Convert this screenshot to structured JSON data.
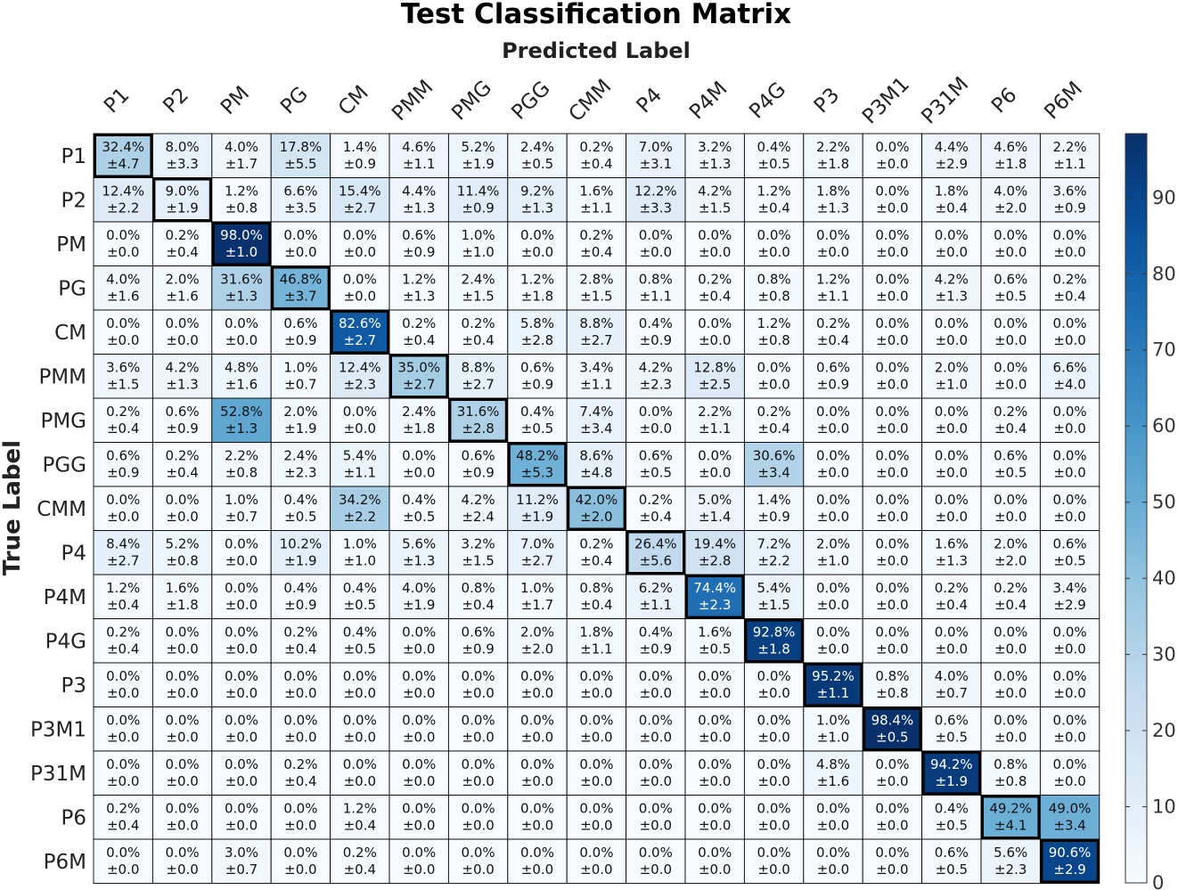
{
  "chart_data": {
    "type": "heatmap",
    "title": "Test Classification Matrix",
    "xlabel": "Predicted Label",
    "ylabel": "True Label",
    "categories": [
      "P1",
      "P2",
      "PM",
      "PG",
      "CM",
      "PMM",
      "PMG",
      "PGG",
      "CMM",
      "P4",
      "P4M",
      "P4G",
      "P3",
      "P3M1",
      "P31M",
      "P6",
      "P6M"
    ],
    "values": [
      [
        32.4,
        8.0,
        4.0,
        17.8,
        1.4,
        4.6,
        5.2,
        2.4,
        0.2,
        7.0,
        3.2,
        0.4,
        2.2,
        0.0,
        4.4,
        4.6,
        2.2
      ],
      [
        12.4,
        9.0,
        1.2,
        6.6,
        15.4,
        4.4,
        11.4,
        9.2,
        1.6,
        12.2,
        4.2,
        1.2,
        1.8,
        0.0,
        1.8,
        4.0,
        3.6
      ],
      [
        0.0,
        0.2,
        98.0,
        0.0,
        0.0,
        0.6,
        1.0,
        0.0,
        0.2,
        0.0,
        0.0,
        0.0,
        0.0,
        0.0,
        0.0,
        0.0,
        0.0
      ],
      [
        4.0,
        2.0,
        31.6,
        46.8,
        0.0,
        1.2,
        2.4,
        1.2,
        2.8,
        0.8,
        0.2,
        0.8,
        1.2,
        0.0,
        4.2,
        0.6,
        0.2
      ],
      [
        0.0,
        0.0,
        0.0,
        0.6,
        82.6,
        0.2,
        0.2,
        5.8,
        8.8,
        0.4,
        0.0,
        1.2,
        0.2,
        0.0,
        0.0,
        0.0,
        0.0
      ],
      [
        3.6,
        4.2,
        4.8,
        1.0,
        12.4,
        35.0,
        8.8,
        0.6,
        3.4,
        4.2,
        12.8,
        0.0,
        0.6,
        0.0,
        2.0,
        0.0,
        6.6
      ],
      [
        0.2,
        0.6,
        52.8,
        2.0,
        0.0,
        2.4,
        31.6,
        0.4,
        7.4,
        0.0,
        2.2,
        0.2,
        0.0,
        0.0,
        0.0,
        0.2,
        0.0
      ],
      [
        0.6,
        0.2,
        2.2,
        2.4,
        5.4,
        0.0,
        0.6,
        48.2,
        8.6,
        0.6,
        0.0,
        30.6,
        0.0,
        0.0,
        0.0,
        0.6,
        0.0
      ],
      [
        0.0,
        0.0,
        1.0,
        0.4,
        34.2,
        0.4,
        4.2,
        11.2,
        42.0,
        0.2,
        5.0,
        1.4,
        0.0,
        0.0,
        0.0,
        0.0,
        0.0
      ],
      [
        8.4,
        5.2,
        0.0,
        10.2,
        1.0,
        5.6,
        3.2,
        7.0,
        0.2,
        26.4,
        19.4,
        7.2,
        2.0,
        0.0,
        1.6,
        2.0,
        0.6
      ],
      [
        1.2,
        1.6,
        0.0,
        0.4,
        0.4,
        4.0,
        0.8,
        1.0,
        0.8,
        6.2,
        74.4,
        5.4,
        0.0,
        0.0,
        0.2,
        0.2,
        3.4
      ],
      [
        0.2,
        0.0,
        0.0,
        0.2,
        0.4,
        0.0,
        0.6,
        2.0,
        1.8,
        0.4,
        1.6,
        92.8,
        0.0,
        0.0,
        0.0,
        0.0,
        0.0
      ],
      [
        0.0,
        0.0,
        0.0,
        0.0,
        0.0,
        0.0,
        0.0,
        0.0,
        0.0,
        0.0,
        0.0,
        0.0,
        95.2,
        0.8,
        4.0,
        0.0,
        0.0
      ],
      [
        0.0,
        0.0,
        0.0,
        0.0,
        0.0,
        0.0,
        0.0,
        0.0,
        0.0,
        0.0,
        0.0,
        0.0,
        1.0,
        98.4,
        0.6,
        0.0,
        0.0
      ],
      [
        0.0,
        0.0,
        0.0,
        0.2,
        0.0,
        0.0,
        0.0,
        0.0,
        0.0,
        0.0,
        0.0,
        0.0,
        4.8,
        0.0,
        94.2,
        0.8,
        0.0
      ],
      [
        0.2,
        0.0,
        0.0,
        0.0,
        1.2,
        0.0,
        0.0,
        0.0,
        0.0,
        0.0,
        0.0,
        0.0,
        0.0,
        0.0,
        0.4,
        49.2,
        49.0
      ],
      [
        0.0,
        0.0,
        3.0,
        0.0,
        0.2,
        0.0,
        0.0,
        0.0,
        0.0,
        0.0,
        0.0,
        0.0,
        0.0,
        0.0,
        0.6,
        5.6,
        90.6
      ]
    ],
    "errors": [
      [
        4.7,
        3.3,
        1.7,
        5.5,
        0.9,
        1.1,
        1.9,
        0.5,
        0.4,
        3.1,
        1.3,
        0.5,
        1.8,
        0.0,
        2.9,
        1.8,
        1.1
      ],
      [
        2.2,
        1.9,
        0.8,
        3.5,
        2.7,
        1.3,
        0.9,
        1.3,
        1.1,
        3.3,
        1.5,
        0.4,
        1.3,
        0.0,
        0.4,
        2.0,
        0.9
      ],
      [
        0.0,
        0.4,
        1.0,
        0.0,
        0.0,
        0.9,
        1.0,
        0.0,
        0.4,
        0.0,
        0.0,
        0.0,
        0.0,
        0.0,
        0.0,
        0.0,
        0.0
      ],
      [
        1.6,
        1.6,
        1.3,
        3.7,
        0.0,
        1.3,
        1.5,
        1.8,
        1.5,
        1.1,
        0.4,
        0.8,
        1.1,
        0.0,
        1.3,
        0.5,
        0.4
      ],
      [
        0.0,
        0.0,
        0.0,
        0.9,
        2.7,
        0.4,
        0.4,
        2.8,
        2.7,
        0.9,
        0.0,
        0.8,
        0.4,
        0.0,
        0.0,
        0.0,
        0.0
      ],
      [
        1.5,
        1.3,
        1.6,
        0.7,
        2.3,
        2.7,
        2.7,
        0.9,
        1.1,
        2.3,
        2.5,
        0.0,
        0.9,
        0.0,
        1.0,
        0.0,
        4.0
      ],
      [
        0.4,
        0.9,
        1.3,
        1.9,
        0.0,
        1.8,
        2.8,
        0.5,
        3.4,
        0.0,
        1.1,
        0.4,
        0.0,
        0.0,
        0.0,
        0.4,
        0.0
      ],
      [
        0.9,
        0.4,
        0.8,
        2.3,
        1.1,
        0.0,
        0.9,
        5.3,
        4.8,
        0.5,
        0.0,
        3.4,
        0.0,
        0.0,
        0.0,
        0.5,
        0.0
      ],
      [
        0.0,
        0.0,
        0.7,
        0.5,
        2.2,
        0.5,
        2.4,
        1.9,
        2.0,
        0.4,
        1.4,
        0.9,
        0.0,
        0.0,
        0.0,
        0.0,
        0.0
      ],
      [
        2.7,
        0.8,
        0.0,
        1.9,
        1.0,
        1.3,
        1.5,
        2.7,
        0.4,
        5.6,
        2.8,
        2.2,
        1.0,
        0.0,
        1.3,
        2.0,
        0.5
      ],
      [
        0.4,
        1.8,
        0.0,
        0.9,
        0.5,
        1.9,
        0.4,
        1.7,
        0.4,
        1.1,
        2.3,
        1.5,
        0.0,
        0.0,
        0.4,
        0.4,
        2.9
      ],
      [
        0.4,
        0.0,
        0.0,
        0.4,
        0.5,
        0.0,
        0.9,
        2.0,
        1.1,
        0.9,
        0.5,
        1.8,
        0.0,
        0.0,
        0.0,
        0.0,
        0.0
      ],
      [
        0.0,
        0.0,
        0.0,
        0.0,
        0.0,
        0.0,
        0.0,
        0.0,
        0.0,
        0.0,
        0.0,
        0.0,
        1.1,
        0.8,
        0.7,
        0.0,
        0.0
      ],
      [
        0.0,
        0.0,
        0.0,
        0.0,
        0.0,
        0.0,
        0.0,
        0.0,
        0.0,
        0.0,
        0.0,
        0.0,
        1.0,
        0.5,
        0.5,
        0.0,
        0.0
      ],
      [
        0.0,
        0.0,
        0.0,
        0.4,
        0.0,
        0.0,
        0.0,
        0.0,
        0.0,
        0.0,
        0.0,
        0.0,
        1.6,
        0.0,
        1.9,
        0.8,
        0.0
      ],
      [
        0.4,
        0.0,
        0.0,
        0.0,
        0.4,
        0.0,
        0.0,
        0.0,
        0.0,
        0.0,
        0.0,
        0.0,
        0.0,
        0.0,
        0.5,
        4.1,
        3.4
      ],
      [
        0.0,
        0.0,
        0.7,
        0.0,
        0.4,
        0.0,
        0.0,
        0.0,
        0.0,
        0.0,
        0.0,
        0.0,
        0.0,
        0.0,
        0.5,
        2.3,
        2.9
      ]
    ],
    "colorbar": {
      "min": 0,
      "max": 98.4,
      "ticks": [
        0,
        10,
        20,
        30,
        40,
        50,
        60,
        70,
        80,
        90
      ],
      "colormap": "Blues"
    },
    "diagonal_highlighted": true,
    "grid": true
  }
}
